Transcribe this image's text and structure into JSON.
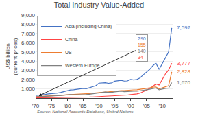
{
  "chart_data": {
    "type": "line",
    "title": "Total Industry Value-Added",
    "ylabel": "US$ billion\n(current prices)",
    "source": "Source: National Accounts Database, United Nations",
    "x": [
      1970,
      1971,
      1972,
      1973,
      1974,
      1975,
      1976,
      1977,
      1978,
      1979,
      1980,
      1981,
      1982,
      1983,
      1984,
      1985,
      1986,
      1987,
      1988,
      1989,
      1990,
      1991,
      1992,
      1993,
      1994,
      1995,
      1996,
      1997,
      1998,
      1999,
      2000,
      2001,
      2002,
      2003,
      2004,
      2005,
      2006,
      2007,
      2008,
      2009,
      2010,
      2011,
      2012,
      2013
    ],
    "xlim": [
      1970,
      2013.5
    ],
    "xticks": [
      {
        "value": 1970,
        "label": "'70"
      },
      {
        "value": 1975,
        "label": "'75"
      },
      {
        "value": 1980,
        "label": "'80"
      },
      {
        "value": 1985,
        "label": "'85"
      },
      {
        "value": 1990,
        "label": "'90"
      },
      {
        "value": 1995,
        "label": "'95"
      },
      {
        "value": 2000,
        "label": "'00"
      },
      {
        "value": 2005,
        "label": "'05"
      },
      {
        "value": 2010,
        "label": "'10"
      }
    ],
    "ylim": [
      0,
      9000
    ],
    "yticks": [
      {
        "value": 0,
        "label": "-"
      },
      {
        "value": 1000,
        "label": "1,000"
      },
      {
        "value": 2000,
        "label": "2,000"
      },
      {
        "value": 3000,
        "label": "3,000"
      },
      {
        "value": 4000,
        "label": "4,000"
      },
      {
        "value": 5000,
        "label": "5,000"
      },
      {
        "value": 6000,
        "label": "6,000"
      },
      {
        "value": 7000,
        "label": "7,000"
      },
      {
        "value": 8000,
        "label": "8,000"
      },
      {
        "value": 9000,
        "label": "9,000"
      }
    ],
    "grid": true,
    "legend": "upper left",
    "series": [
      {
        "name": "Asia (including China)",
        "color": "#4472C4",
        "values": [
          290,
          310,
          340,
          400,
          450,
          470,
          505,
          550,
          620,
          710,
          830,
          880,
          900,
          940,
          1010,
          1050,
          1010,
          1110,
          1220,
          1340,
          1620,
          1650,
          1670,
          1600,
          1650,
          1830,
          1900,
          1930,
          1840,
          1860,
          2020,
          1960,
          2020,
          2200,
          2520,
          2790,
          3100,
          3500,
          3800,
          3100,
          3750,
          4400,
          5000,
          7597
        ]
      },
      {
        "name": "China",
        "color": "#FF4444",
        "values": [
          34,
          36,
          39,
          44,
          48,
          50,
          54,
          58,
          63,
          70,
          78,
          83,
          85,
          88,
          93,
          98,
          104,
          115,
          130,
          148,
          162,
          172,
          183,
          193,
          220,
          252,
          283,
          304,
          314,
          336,
          378,
          398,
          451,
          545,
          693,
          840,
          1030,
          1262,
          1523,
          1418,
          1996,
          2619,
          3048,
          3777
        ]
      },
      {
        "name": "US",
        "color": "#ED7D31",
        "values": [
          155,
          170,
          190,
          215,
          235,
          238,
          255,
          275,
          298,
          330,
          370,
          382,
          390,
          405,
          445,
          462,
          468,
          500,
          535,
          575,
          615,
          635,
          655,
          672,
          715,
          745,
          775,
          808,
          818,
          848,
          902,
          893,
          905,
          942,
          1005,
          1042,
          1105,
          1177,
          1208,
          1000,
          1120,
          1230,
          1340,
          2828
        ]
      },
      {
        "name": "Western Europe",
        "color": "#808080",
        "values": [
          140,
          152,
          168,
          190,
          215,
          225,
          240,
          256,
          278,
          318,
          368,
          375,
          362,
          362,
          378,
          382,
          382,
          425,
          465,
          495,
          590,
          628,
          655,
          622,
          622,
          685,
          725,
          745,
          702,
          722,
          762,
          742,
          742,
          782,
          852,
          903,
          962,
          1052,
          1102,
          900,
          980,
          1052,
          1082,
          1670
        ]
      }
    ],
    "annotations": {
      "end_labels": [
        {
          "text": "7,597",
          "y": 7597,
          "color": "#4472C4"
        },
        {
          "text": "3,777",
          "y": 3777,
          "color": "#FF4444"
        },
        {
          "text": "2,828",
          "y": 2828,
          "color": "#ED7D31"
        },
        {
          "text": "1,670",
          "y": 1670,
          "color": "#808080"
        }
      ],
      "start_box": {
        "labels": [
          {
            "text": "290",
            "color": "#4472C4"
          },
          {
            "text": "155",
            "color": "#ED7D31"
          },
          {
            "text": "140",
            "color": "#808080"
          },
          {
            "text": "34",
            "color": "#FF4444"
          }
        ],
        "arrow_to": {
          "x": 1971,
          "y": 250
        }
      }
    }
  }
}
